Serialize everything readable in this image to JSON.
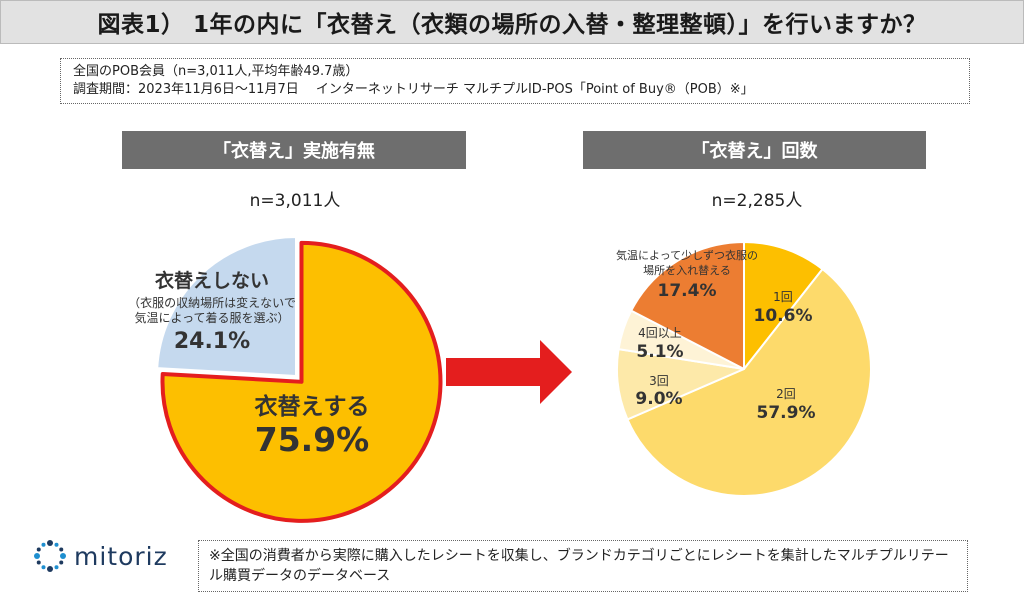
{
  "title": "図表1） 1年の内に「衣替え（衣類の場所の入替・整理整頓）」を行いますか？",
  "meta": {
    "line1": "全国のPOB会員（n=3,011人,平均年齢49.7歳）",
    "line2": "調査期間：2023年11月6日〜11月7日　 インターネットリサーチ マルチプルID-POS「Point of Buy®（POB）※」"
  },
  "footnote": "※全国の消費者から実際に購入したレシートを収集し、ブランドカテゴリごとにレシートを集計したマルチプルリテール購買データのデータベース",
  "logo": {
    "text": "mitoriz",
    "icon": "dotted-circle-logo-icon"
  },
  "colors": {
    "title_bg": "#e2e2e2",
    "header_bg": "#6e6e6e",
    "arrow": "#e41e1e",
    "orange": "#fdbf00",
    "light_blue": "#c5d9ee",
    "dark_orange": "#ec7d32",
    "light_yellow": "#fdda6b",
    "pale_yellow": "#fde9a9",
    "cream": "#fef3d6"
  },
  "chart_data": [
    {
      "type": "pie",
      "title": "「衣替え」実施有無",
      "n_label": "n=3,011人",
      "slices": [
        {
          "label": "衣替えする",
          "value": 75.9,
          "value_label": "75.9%",
          "color": "#fdbf00"
        },
        {
          "label": "衣替えしない",
          "sublabel": "（衣服の収納場所は変えないで\n気温によって着る服を選ぶ）",
          "value": 24.1,
          "value_label": "24.1%",
          "color": "#c5d9ee"
        }
      ]
    },
    {
      "type": "pie",
      "title": "「衣替え」回数",
      "n_label": "n=2,285人",
      "slices": [
        {
          "label": "1回",
          "value": 10.6,
          "value_label": "10.6%",
          "color": "#fdbf00"
        },
        {
          "label": "2回",
          "value": 57.9,
          "value_label": "57.9%",
          "color": "#fdda6b"
        },
        {
          "label": "3回",
          "value": 9.0,
          "value_label": "9.0%",
          "color": "#fde9a9"
        },
        {
          "label": "4回以上",
          "value": 5.1,
          "value_label": "5.1%",
          "color": "#fef3d6"
        },
        {
          "label": "気温によって少しずつ衣服の\n場所を入れ替える",
          "value": 17.4,
          "value_label": "17.4%",
          "color": "#ec7d32"
        }
      ]
    }
  ]
}
